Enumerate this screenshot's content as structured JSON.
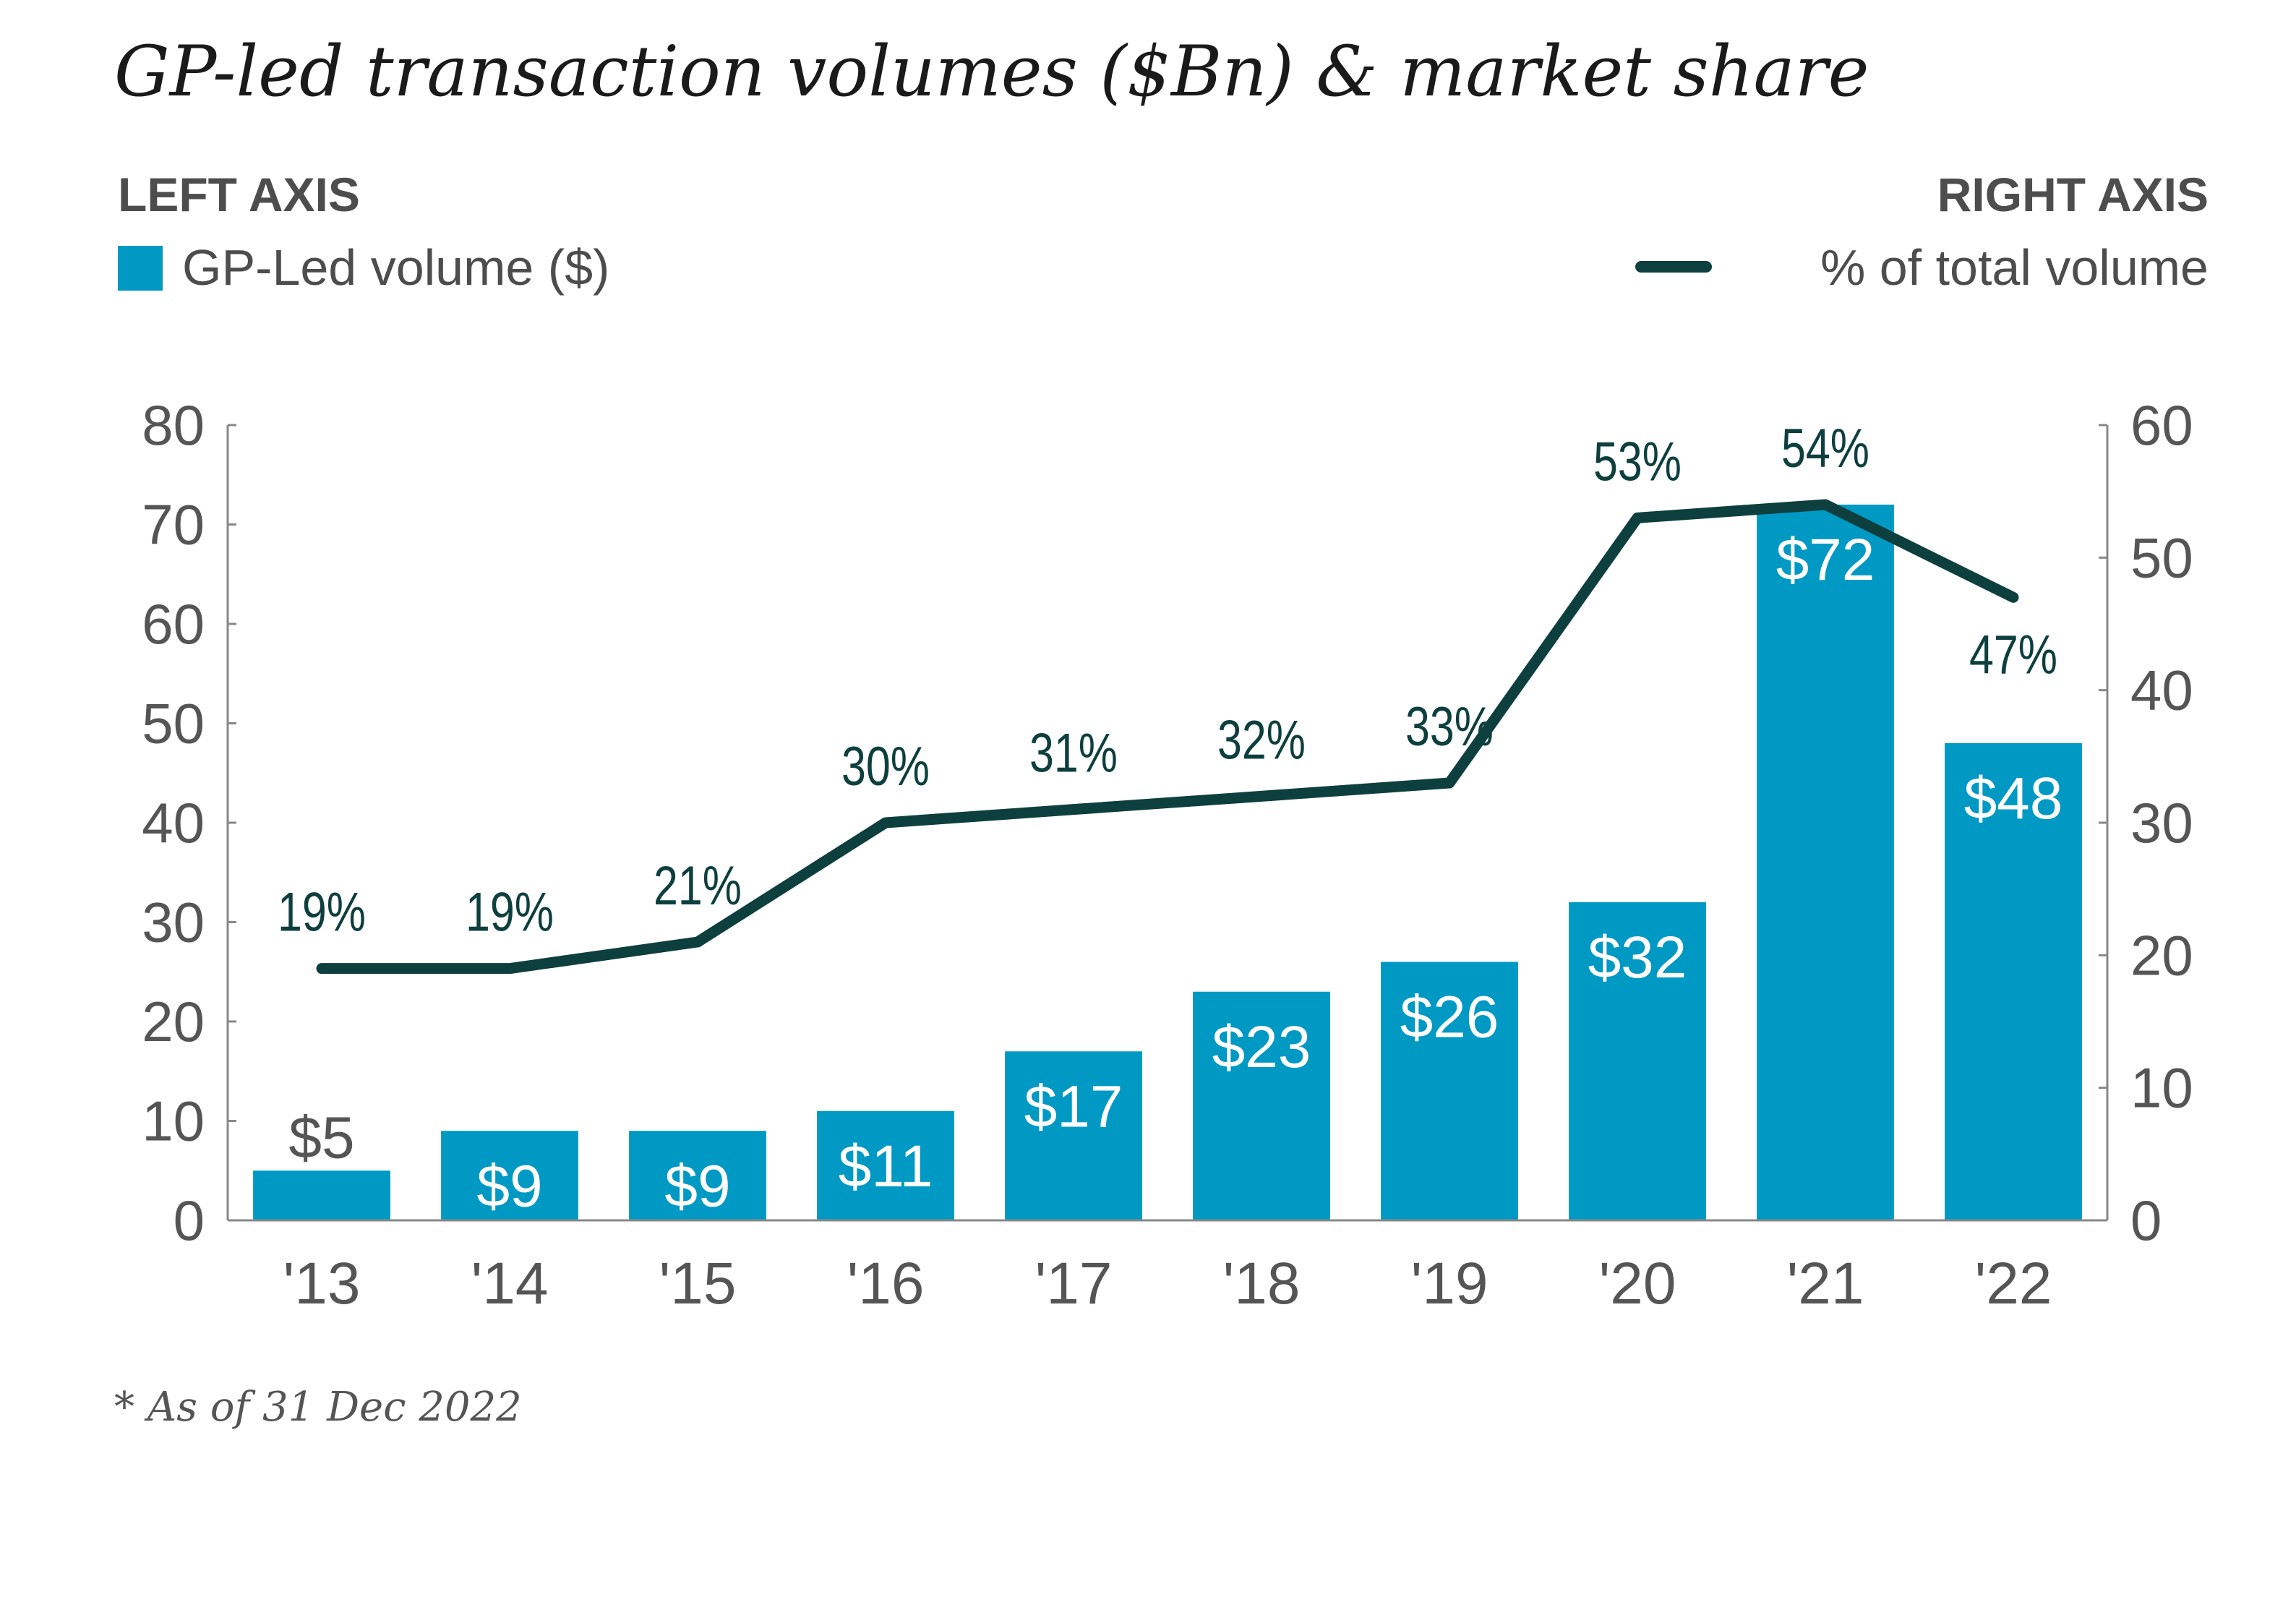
{
  "colors": {
    "bar": "#0099c4",
    "line": "#0e3f3f",
    "axis": "#888888",
    "text": "#555555"
  },
  "title": "GP-led transaction volumes ($Bn) & market share",
  "legend": {
    "left_heading": "LEFT AXIS",
    "left_series": "GP-Led volume ($)",
    "right_heading": "RIGHT AXIS",
    "right_series": "% of total volume"
  },
  "footnote": "* As of 31 Dec 2022",
  "chart_data": {
    "type": "bar",
    "categories": [
      "'13",
      "'14",
      "'15",
      "'16",
      "'17",
      "'18",
      "'19",
      "'20",
      "'21",
      "'22"
    ],
    "series": [
      {
        "name": "GP-Led volume ($)",
        "type": "bar",
        "axis": "left",
        "values": [
          5,
          9,
          9,
          11,
          17,
          23,
          26,
          32,
          72,
          48
        ],
        "labels": [
          "$5",
          "$9",
          "$9",
          "$11",
          "$17",
          "$23",
          "$26",
          "$32",
          "$72",
          "$48"
        ]
      },
      {
        "name": "% of total volume",
        "type": "line",
        "axis": "right",
        "values": [
          19,
          19,
          21,
          30,
          31,
          32,
          33,
          53,
          54,
          47
        ],
        "labels": [
          "19%",
          "19%",
          "21%",
          "30%",
          "31%",
          "32%",
          "33%",
          "53%",
          "54%",
          "47%"
        ]
      }
    ],
    "left_axis": {
      "ylim": [
        0,
        80
      ],
      "ticks": [
        "0",
        "10",
        "20",
        "30",
        "40",
        "50",
        "60",
        "70",
        "80"
      ]
    },
    "right_axis": {
      "ylim": [
        0,
        60
      ],
      "ticks": [
        "0",
        "10",
        "20",
        "30",
        "40",
        "50",
        "60"
      ]
    },
    "grid": false,
    "legend_position": "top"
  }
}
